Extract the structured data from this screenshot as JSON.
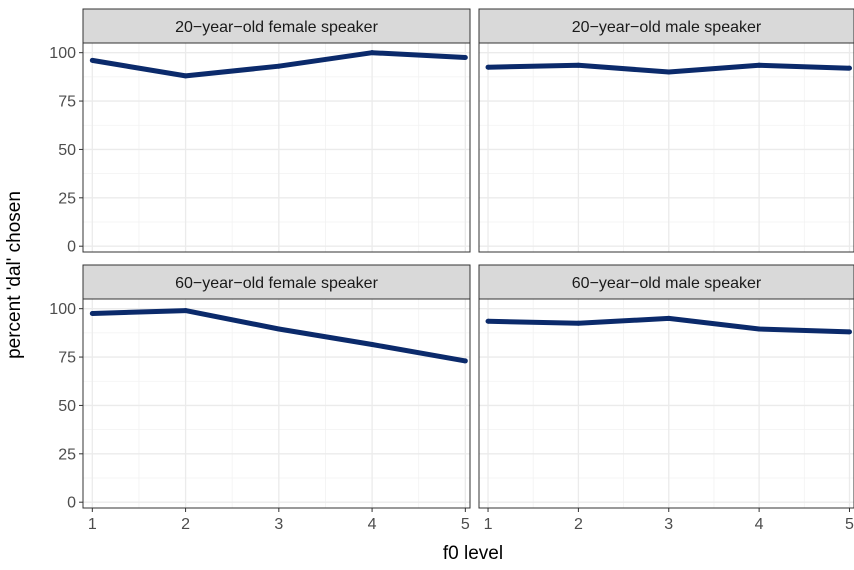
{
  "chart_data": {
    "type": "line",
    "facets": [
      {
        "title": "20−year−old female speaker",
        "x": [
          1,
          2,
          3,
          4,
          5
        ],
        "values": [
          96,
          88,
          93,
          100,
          97.5
        ]
      },
      {
        "title": "20−year−old male speaker",
        "x": [
          1,
          2,
          3,
          4,
          5
        ],
        "values": [
          92.5,
          93.5,
          90,
          93.5,
          92
        ]
      },
      {
        "title": "60−year−old female speaker",
        "x": [
          1,
          2,
          3,
          4,
          5
        ],
        "values": [
          97.5,
          99,
          89.5,
          81.5,
          73
        ]
      },
      {
        "title": "60−year−old male speaker",
        "x": [
          1,
          2,
          3,
          4,
          5
        ],
        "values": [
          93.5,
          92.5,
          95,
          89.5,
          88
        ]
      }
    ],
    "xlabel": "f0 level",
    "ylabel": "percent 'dal' chosen",
    "xticks": [
      "1",
      "2",
      "3",
      "4",
      "5"
    ],
    "yticks": [
      "0",
      "25",
      "50",
      "75",
      "100"
    ],
    "xlim": [
      0.9,
      5.05
    ],
    "ylim": [
      -3,
      105
    ],
    "grid": true,
    "line_color": "#0b2a6b",
    "facet_strip_color": "#d9d9d9"
  }
}
